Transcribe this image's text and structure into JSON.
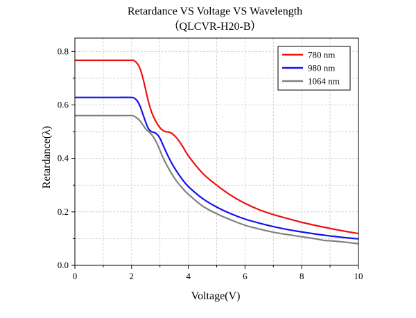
{
  "chart_data": {
    "type": "line",
    "title": "Retardance VS Voltage VS Wavelength",
    "subtitle": "（QLCVR-H20-B）",
    "xlabel": "Voltage(V)",
    "ylabel": "Retardance(λ)",
    "xlim": [
      0,
      10
    ],
    "ylim": [
      0,
      0.85
    ],
    "x_ticks": [
      "0",
      "2",
      "4",
      "6",
      "8",
      "10"
    ],
    "y_ticks": [
      "0.0",
      "0.2",
      "0.4",
      "0.6",
      "0.8"
    ],
    "grid": true,
    "legend_position": "top-right",
    "series": [
      {
        "name": "780 nm",
        "color": "#ee1111",
        "x": [
          0,
          0.5,
          1.0,
          1.5,
          2.0,
          2.1,
          2.2,
          2.3,
          2.4,
          2.5,
          2.6,
          2.7,
          2.8,
          2.9,
          3.0,
          3.1,
          3.2,
          3.4,
          3.6,
          3.8,
          4.0,
          4.5,
          5.0,
          5.5,
          6.0,
          6.5,
          7.0,
          7.5,
          8.0,
          8.5,
          9.0,
          9.5,
          10.0
        ],
        "y": [
          0.767,
          0.767,
          0.767,
          0.767,
          0.767,
          0.765,
          0.755,
          0.735,
          0.7,
          0.655,
          0.61,
          0.575,
          0.55,
          0.53,
          0.515,
          0.505,
          0.5,
          0.495,
          0.475,
          0.445,
          0.41,
          0.345,
          0.3,
          0.262,
          0.232,
          0.208,
          0.19,
          0.175,
          0.161,
          0.149,
          0.138,
          0.128,
          0.119
        ]
      },
      {
        "name": "980 nm",
        "color": "#1111ee",
        "x": [
          0,
          0.5,
          1.0,
          1.5,
          2.0,
          2.1,
          2.2,
          2.3,
          2.4,
          2.5,
          2.6,
          2.7,
          2.8,
          2.9,
          3.0,
          3.1,
          3.2,
          3.4,
          3.6,
          3.8,
          4.0,
          4.5,
          5.0,
          5.5,
          6.0,
          6.5,
          7.0,
          7.5,
          8.0,
          8.5,
          9.0,
          9.5,
          10.0
        ],
        "y": [
          0.628,
          0.628,
          0.628,
          0.628,
          0.628,
          0.625,
          0.615,
          0.595,
          0.565,
          0.535,
          0.51,
          0.5,
          0.497,
          0.49,
          0.475,
          0.452,
          0.428,
          0.385,
          0.35,
          0.32,
          0.295,
          0.25,
          0.218,
          0.193,
          0.173,
          0.158,
          0.145,
          0.134,
          0.125,
          0.117,
          0.11,
          0.104,
          0.099
        ]
      },
      {
        "name": "1064 nm",
        "color": "#808080",
        "x": [
          0,
          0.5,
          1.0,
          1.5,
          2.0,
          2.1,
          2.2,
          2.3,
          2.4,
          2.5,
          2.6,
          2.7,
          2.8,
          2.9,
          3.0,
          3.1,
          3.2,
          3.4,
          3.6,
          3.8,
          4.0,
          4.5,
          5.0,
          5.5,
          6.0,
          6.5,
          7.0,
          7.5,
          8.0,
          8.5,
          8.8,
          9.0,
          9.5,
          10.0
        ],
        "y": [
          0.56,
          0.56,
          0.56,
          0.56,
          0.56,
          0.557,
          0.55,
          0.54,
          0.525,
          0.51,
          0.5,
          0.49,
          0.475,
          0.455,
          0.43,
          0.405,
          0.383,
          0.345,
          0.313,
          0.288,
          0.266,
          0.222,
          0.193,
          0.17,
          0.15,
          0.136,
          0.124,
          0.115,
          0.107,
          0.099,
          0.093,
          0.092,
          0.087,
          0.081
        ]
      }
    ]
  }
}
